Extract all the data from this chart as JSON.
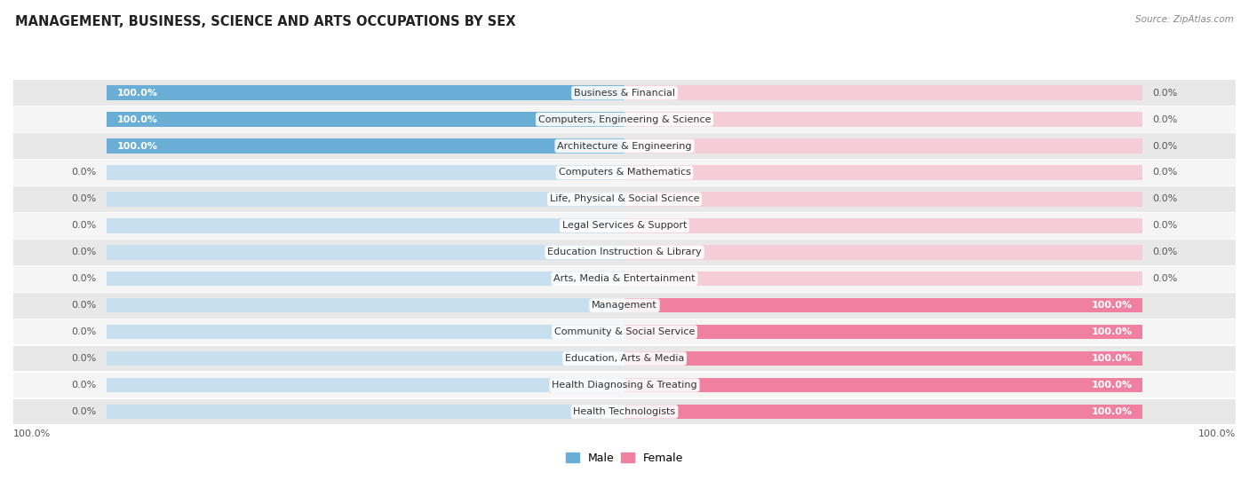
{
  "title": "MANAGEMENT, BUSINESS, SCIENCE AND ARTS OCCUPATIONS BY SEX",
  "source": "Source: ZipAtlas.com",
  "categories": [
    "Business & Financial",
    "Computers, Engineering & Science",
    "Architecture & Engineering",
    "Computers & Mathematics",
    "Life, Physical & Social Science",
    "Legal Services & Support",
    "Education Instruction & Library",
    "Arts, Media & Entertainment",
    "Management",
    "Community & Social Service",
    "Education, Arts & Media",
    "Health Diagnosing & Treating",
    "Health Technologists"
  ],
  "male_values": [
    100.0,
    100.0,
    100.0,
    0.0,
    0.0,
    0.0,
    0.0,
    0.0,
    0.0,
    0.0,
    0.0,
    0.0,
    0.0
  ],
  "female_values": [
    0.0,
    0.0,
    0.0,
    0.0,
    0.0,
    0.0,
    0.0,
    0.0,
    100.0,
    100.0,
    100.0,
    100.0,
    100.0
  ],
  "male_color": "#6aaed6",
  "female_color": "#f080a0",
  "male_color_light": "#c8dff0",
  "female_color_light": "#f5cdd8",
  "title_fontsize": 10.5,
  "label_fontsize": 8.0,
  "value_fontsize": 8.0
}
